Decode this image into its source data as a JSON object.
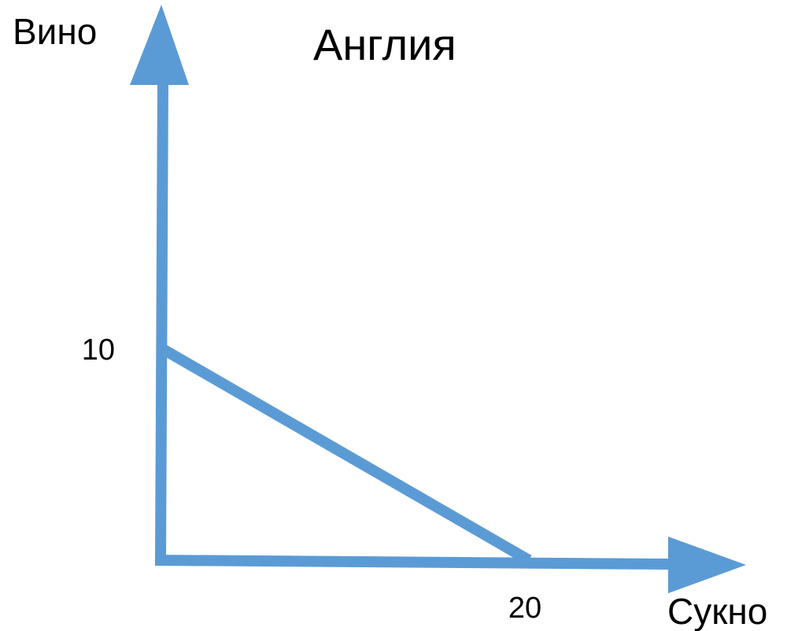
{
  "chart_data": {
    "type": "line",
    "title": "Англия",
    "xlabel": "Сукно",
    "ylabel": "Вино",
    "x_ticks": [
      20
    ],
    "y_ticks": [
      10
    ],
    "series": [
      {
        "x": [
          0,
          20
        ],
        "y": [
          10,
          0
        ]
      }
    ],
    "xlim": [
      0,
      32
    ],
    "ylim": [
      0,
      26
    ],
    "grid": false,
    "legend": "none",
    "color": "#5b9bd5"
  }
}
